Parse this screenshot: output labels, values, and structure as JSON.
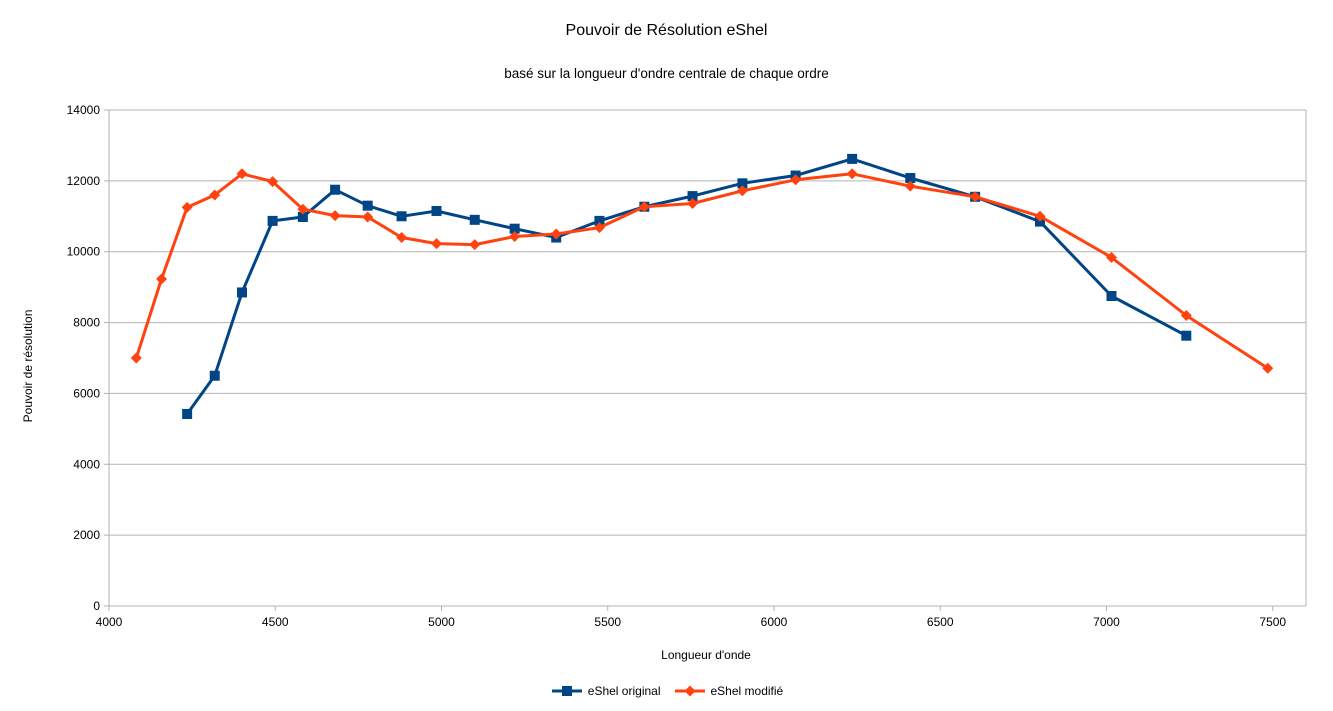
{
  "chart_data": {
    "type": "line",
    "title": "Pouvoir de Résolution eShel",
    "subtitle": "basé sur la longueur d'ondre centrale de chaque ordre",
    "xlabel": "Longueur d'onde",
    "ylabel": "Pouvoir de résolution",
    "xlim": [
      4000,
      7600
    ],
    "ylim": [
      0,
      14000
    ],
    "xticks": [
      4000,
      4500,
      5000,
      5500,
      6000,
      6500,
      7000,
      7500
    ],
    "yticks": [
      0,
      2000,
      4000,
      6000,
      8000,
      10000,
      12000,
      14000
    ],
    "grid": "horizontal",
    "legend_position": "bottom",
    "series": [
      {
        "name": "eShel original",
        "color": "#004586",
        "marker": "square",
        "x": [
          4235,
          4318,
          4400,
          4492,
          4583,
          4680,
          4778,
          4880,
          4985,
          5100,
          5220,
          5345,
          5475,
          5610,
          5755,
          5905,
          6065,
          6235,
          6410,
          6605,
          6800,
          7015,
          7240
        ],
        "y": [
          5420,
          6500,
          8850,
          10870,
          10980,
          11750,
          11300,
          11000,
          11150,
          10900,
          10650,
          10400,
          10870,
          11270,
          11570,
          11930,
          12150,
          12620,
          12080,
          11550,
          10850,
          8750,
          7630
        ]
      },
      {
        "name": "eShel modifié",
        "color": "#ff420e",
        "marker": "diamond",
        "x": [
          4082,
          4158,
          4235,
          4318,
          4400,
          4492,
          4583,
          4680,
          4778,
          4880,
          4985,
          5100,
          5220,
          5345,
          5475,
          5610,
          5755,
          5905,
          6065,
          6235,
          6410,
          6605,
          6800,
          7015,
          7240,
          7485
        ],
        "y": [
          7000,
          9230,
          11250,
          11600,
          12200,
          11980,
          11200,
          11020,
          10980,
          10400,
          10230,
          10200,
          10430,
          10500,
          10680,
          11270,
          11360,
          11720,
          12030,
          12200,
          11850,
          11550,
          11000,
          9840,
          8200,
          6710
        ]
      }
    ]
  }
}
